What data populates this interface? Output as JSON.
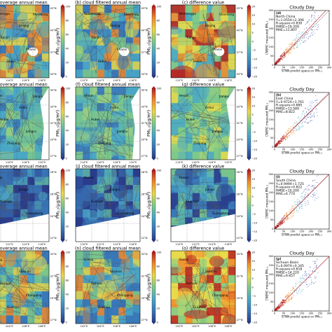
{
  "column_titles": [
    "coverage annual mean",
    "cloud filtered annual mean",
    "difference value",
    "Cloudy Day"
  ],
  "map_panel_prefixes": [
    "",
    "(b)",
    "(c)",
    "",
    "(f)",
    "(g)",
    "",
    "(j)",
    "(k)",
    "",
    "(n)",
    "(o)"
  ],
  "scatter_panel_prefixes": [
    "(d)",
    "(h)",
    "(l)",
    "(p)"
  ],
  "colorbars": {
    "pm_label": "PM₂.₅(μg/m³)",
    "pm_ticks": [
      "100",
      "80",
      "60",
      "40",
      "20",
      "0"
    ],
    "diff_ticks": [
      "20",
      "15",
      "10",
      "5",
      "0",
      "−5",
      "−10",
      "−15",
      "−20"
    ]
  },
  "colors": {
    "very_low": "#2a3d8c",
    "low": "#3a78b8",
    "mid_low": "#4aa8c6",
    "mid": "#7ec98a",
    "mid_high": "#e8d94a",
    "high": "#f08a2c",
    "very_high": "#b81f1f",
    "white_cloud": "#ffffff"
  },
  "rows": [
    {
      "region": "North China",
      "lat_ticks": [
        "43°N",
        "40°N",
        "37°N",
        "34°N"
      ],
      "lon_ticks": [
        "112°E",
        "114°E",
        "116°E",
        "118°E"
      ],
      "places": [
        "Neimenggu",
        "Beijing",
        "Tianjin",
        "Shanxi",
        "Hebei",
        "Shandong"
      ],
      "stats": [
        "North China",
        "Y=1.055X+2.306",
        "R-square=0.830",
        "RMSE=19.209",
        "MAE=11.807"
      ]
    },
    {
      "region": "East China",
      "lat_ticks": [
        "35°N",
        "33°N",
        "31°N",
        "29°N",
        "27°N"
      ],
      "lon_ticks": [
        "114°E",
        "116°E",
        "118°E",
        "120°E"
      ],
      "places": [
        "Henan",
        "Anhui",
        "Hubei",
        "Jiangsu",
        "Zhejiang",
        "Jiangxi"
      ],
      "stats": [
        "East China",
        "Y=0.972X+1.761",
        "R-square=0.885",
        "RMSE=13.589",
        "MAE=8.822"
      ]
    },
    {
      "region": "South China",
      "lat_ticks": [
        "28°N",
        "26°N",
        "24°N",
        "22°N"
      ],
      "lon_ticks": [
        "110°E",
        "112°E",
        "114°E",
        "116°E"
      ],
      "places": [
        "Hunan",
        "Jiangxi",
        "Guangxi",
        "Guangdong"
      ],
      "stats": [
        "South China",
        "Y=0.999X+1.725",
        "R-square=0.822",
        "RMSE=10.200",
        "MAE=6.774"
      ]
    },
    {
      "region": "Sichuan Basin",
      "lat_ticks": [
        "33°N",
        "31°N",
        "29°N",
        "27°N"
      ],
      "lon_ticks": [
        "102°E",
        "104°E",
        "106°E",
        "108°E"
      ],
      "places": [
        "Gansu",
        "Shaanxi",
        "Sichuan",
        "Chongqing",
        "Guizhou"
      ],
      "stats": [
        "Sichuan Basin",
        "Y=0.997X+0.345",
        "R-square=0.818",
        "RMSE=14.220",
        "MAE=9.657"
      ]
    }
  ],
  "chart_data": {
    "type": "scatter",
    "title": "Cloudy Day",
    "xlabel": "STNN predict space-cv PM₂.₅",
    "ylabel": "CNEMC measured PM₂.₅",
    "x_ticks": [
      "0",
      "50",
      "100",
      "150",
      "200",
      "250",
      "300"
    ],
    "y_ticks": [
      "0",
      "50",
      "100",
      "150",
      "200",
      "250",
      "300"
    ],
    "xlim": [
      0,
      300
    ],
    "ylim": [
      0,
      300
    ],
    "series": [
      {
        "region": "North China",
        "slope": 1.055,
        "intercept": 2.306,
        "r_square": 0.83,
        "rmse": 19.209,
        "mae": 11.807
      },
      {
        "region": "East China",
        "slope": 0.972,
        "intercept": 1.761,
        "r_square": 0.885,
        "rmse": 13.589,
        "mae": 8.822
      },
      {
        "region": "South China",
        "slope": 0.999,
        "intercept": 1.725,
        "r_square": 0.822,
        "rmse": 10.2,
        "mae": 6.774
      },
      {
        "region": "Sichuan Basin",
        "slope": 0.997,
        "intercept": 0.345,
        "r_square": 0.818,
        "rmse": 14.22,
        "mae": 9.657
      }
    ]
  }
}
